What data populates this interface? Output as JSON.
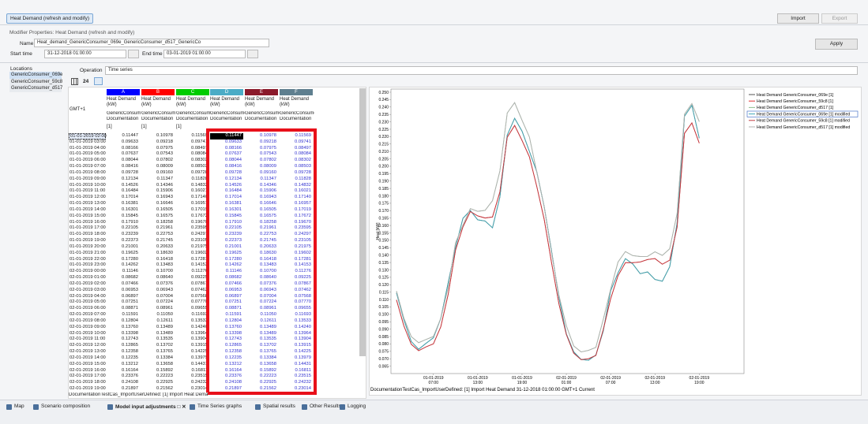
{
  "toolbar": {
    "tab": "Heat Demand (refresh and modify)",
    "import": "Import",
    "export": "Export"
  },
  "modifier": {
    "title": "Modifier Properties: Heat Demand (refresh and modify)",
    "name_label": "Name",
    "name": "Heat_demand_GenericConsumer_069e_GenericConsumer_d517_GenericCo",
    "start_label": "Start time",
    "start": "31-12-2018 01:00:00",
    "end_label": "End time",
    "end": "03-01-2019 01:00:00",
    "apply": "Apply"
  },
  "locations": {
    "title": "Locations",
    "items": [
      "GenericConsumer_069e",
      "GenericConsumer_59c8",
      "GenericConsumer_d517"
    ]
  },
  "operation": {
    "label": "Operation",
    "value": "Time series"
  },
  "view": {
    "count": "24"
  },
  "table": {
    "gmt": "GMT+1",
    "columns": [
      {
        "letter": "A",
        "color": "#0000ff",
        "name": [
          "Heat Demand",
          "(kW)"
        ],
        "doc": [
          "GenericConsum",
          "Documentation"
        ],
        "unit": "[1]"
      },
      {
        "letter": "B",
        "color": "#ff0000",
        "name": [
          "Heat Demand",
          "(kW)"
        ],
        "doc": [
          "GenericConsum",
          "Documentation"
        ],
        "unit": "[1]"
      },
      {
        "letter": "C",
        "color": "#00cc00",
        "name": [
          "Heat Demand",
          "(kW)"
        ],
        "doc": [
          "GenericConsum",
          "Documentation"
        ],
        "unit": "[1]"
      },
      {
        "letter": "D",
        "color": "#4bacc6",
        "name": [
          "Heat Demand",
          "(kW)"
        ],
        "doc": [
          "GenericConsumer",
          "Documentation"
        ]
      },
      {
        "letter": "E",
        "color": "#8b1a2b",
        "name": [
          "Heat Demand",
          "(kW)"
        ],
        "doc": [
          "GenericConsumer",
          "Documentation"
        ]
      },
      {
        "letter": "F",
        "color": "#5f7f8f",
        "name": [
          "Heat Demand",
          "(kW)"
        ],
        "doc": [
          "GenericConsumer",
          "Documentation"
        ]
      }
    ],
    "rows": [
      [
        "01-01-2019 02:00",
        "0.11447",
        "0.10978",
        "0.11569"
      ],
      [
        "01-01-2019 03:00",
        "0.09633",
        "0.09218",
        "0.09741"
      ],
      [
        "01-01-2019 04:00",
        "0.08166",
        "0.07975",
        "0.08497"
      ],
      [
        "01-01-2019 05:00",
        "0.07637",
        "0.07543",
        "0.08084"
      ],
      [
        "01-01-2019 06:00",
        "0.08044",
        "0.07802",
        "0.08302"
      ],
      [
        "01-01-2019 07:00",
        "0.08416",
        "0.08009",
        "0.08503"
      ],
      [
        "01-01-2019 08:00",
        "0.09728",
        "0.09160",
        "0.09728"
      ],
      [
        "01-01-2019 09:00",
        "0.12134",
        "0.11347",
        "0.11828"
      ],
      [
        "01-01-2019 10:00",
        "0.14526",
        "0.14346",
        "0.14832"
      ],
      [
        "01-01-2019 11:00",
        "0.16484",
        "0.15906",
        "0.16021"
      ],
      [
        "01-01-2019 12:00",
        "0.17014",
        "0.16943",
        "0.17140"
      ],
      [
        "01-01-2019 13:00",
        "0.16381",
        "0.16646",
        "0.16957"
      ],
      [
        "01-01-2019 14:00",
        "0.16301",
        "0.16505",
        "0.17019"
      ],
      [
        "01-01-2019 15:00",
        "0.15845",
        "0.16575",
        "0.17672"
      ],
      [
        "01-01-2019 16:00",
        "0.17910",
        "0.18258",
        "0.19670"
      ],
      [
        "01-01-2019 17:00",
        "0.22105",
        "0.21961",
        "0.23595"
      ],
      [
        "01-01-2019 18:00",
        "0.23239",
        "0.22753",
        "0.24297"
      ],
      [
        "01-01-2019 19:00",
        "0.22373",
        "0.21745",
        "0.23105"
      ],
      [
        "01-01-2019 20:00",
        "0.21001",
        "0.20633",
        "0.21975"
      ],
      [
        "01-01-2019 21:00",
        "0.19625",
        "0.18630",
        "0.19602"
      ],
      [
        "01-01-2019 22:00",
        "0.17280",
        "0.16418",
        "0.17281"
      ],
      [
        "01-01-2019 23:00",
        "0.14262",
        "0.13483",
        "0.14153"
      ],
      [
        "02-01-2019 00:00",
        "0.11146",
        "0.10700",
        "0.11276"
      ],
      [
        "02-01-2019 01:00",
        "0.08682",
        "0.08640",
        "0.09225"
      ],
      [
        "02-01-2019 02:00",
        "0.07466",
        "0.07376",
        "0.07867"
      ],
      [
        "02-01-2019 03:00",
        "0.06953",
        "0.06943",
        "0.07462"
      ],
      [
        "02-01-2019 04:00",
        "0.06897",
        "0.07004",
        "0.07568"
      ],
      [
        "02-01-2019 05:00",
        "0.07251",
        "0.07224",
        "0.07770"
      ],
      [
        "02-01-2019 06:00",
        "0.08871",
        "0.08961",
        "0.09655"
      ],
      [
        "02-01-2019 07:00",
        "0.11591",
        "0.11050",
        "0.11693"
      ],
      [
        "02-01-2019 08:00",
        "0.12804",
        "0.12611",
        "0.13533"
      ],
      [
        "02-01-2019 09:00",
        "0.13760",
        "0.13489",
        "0.14240"
      ],
      [
        "02-01-2019 10:00",
        "0.13398",
        "0.13489",
        "0.13964"
      ],
      [
        "02-01-2019 11:00",
        "0.12743",
        "0.13535",
        "0.13904"
      ],
      [
        "02-01-2019 12:00",
        "0.12865",
        "0.13702",
        "0.13915"
      ],
      [
        "02-01-2019 13:00",
        "0.12358",
        "0.13765",
        "0.14225"
      ],
      [
        "02-01-2019 14:00",
        "0.12235",
        "0.13384",
        "0.13979"
      ],
      [
        "02-01-2019 15:00",
        "0.13212",
        "0.13658",
        "0.14431"
      ],
      [
        "02-01-2019 16:00",
        "0.16164",
        "0.15892",
        "0.16811"
      ],
      [
        "02-01-2019 17:00",
        "0.23376",
        "0.22223",
        "0.23515"
      ],
      [
        "02-01-2019 18:00",
        "0.24108",
        "0.22925",
        "0.24232"
      ],
      [
        "02-01-2019 19:00",
        "0.21897",
        "0.21562",
        "0.23014"
      ]
    ]
  },
  "chart": {
    "type": "line",
    "y_label": "Heat [kW]",
    "series": [
      {
        "name": "Heat Demand GenericConsumer_069e [1]",
        "color": "#555555"
      },
      {
        "name": "Heat Demand GenericConsumer_59c8 [1]",
        "color": "#e03030"
      },
      {
        "name": "Heat Demand GenericConsumer_d517 [1]",
        "color": "#90c090"
      },
      {
        "name": "Heat Demand GenericConsumer_069e [1] modified",
        "color": "#3fa8b5"
      },
      {
        "name": "Heat Demand GenericConsumer_59c8 [1] modified",
        "color": "#c03a40"
      },
      {
        "name": "Heat Demand GenericConsumer_d517 [1] modified",
        "color": "#b0b0b0"
      }
    ],
    "ylim": [
      0.06,
      0.25
    ],
    "yticks": [
      0.065,
      {
        "value": 0.07,
        "label": "0.070"
      },
      0.075,
      {
        "value": 0.08,
        "label": "0.080"
      },
      0.085,
      {
        "value": 0.09,
        "label": "0.090"
      },
      0.095,
      {
        "value": 0.1,
        "label": "0.100"
      },
      0.105,
      {
        "value": 0.11,
        "label": "0.110"
      },
      0.115,
      {
        "value": 0.12,
        "label": "0.120"
      },
      0.125,
      {
        "value": 0.13,
        "label": "0.130"
      },
      0.135,
      {
        "value": 0.14,
        "label": "0.140"
      },
      0.145,
      {
        "value": 0.15,
        "label": "0.150"
      },
      0.155,
      {
        "value": 0.16,
        "label": "0.160"
      },
      0.165,
      {
        "value": 0.17,
        "label": "0.170"
      },
      0.175,
      {
        "value": 0.18,
        "label": "0.180"
      },
      0.185,
      {
        "value": 0.19,
        "label": "0.190"
      },
      0.195,
      {
        "value": 0.2,
        "label": "0.200"
      },
      0.205,
      {
        "value": 0.21,
        "label": "0.210"
      },
      0.215,
      {
        "value": 0.22,
        "label": "0.220"
      },
      0.225,
      {
        "value": 0.23,
        "label": "0.230"
      },
      0.235,
      {
        "value": 0.24,
        "label": "0.240"
      },
      0.245,
      {
        "value": 0.25,
        "label": "0.250"
      }
    ],
    "xticks": [
      [
        "01-01-2019",
        "07:00"
      ],
      [
        "01-01-2019",
        "13:00"
      ],
      [
        "01-01-2019",
        "19:00"
      ],
      [
        "02-01-2019",
        "01:00"
      ],
      [
        "02-01-2019",
        "07:00"
      ],
      [
        "02-01-2019",
        "13:00"
      ],
      [
        "02-01-2019",
        "19:00"
      ]
    ]
  },
  "status": "DocumentationTestCas_ImportUserDefined: [1] Import Heat Demand 31-12-2018 01:00:00 GMT+1 Current",
  "tabs": [
    "Map",
    "Scenario composition",
    "Model input adjustments □ ✕",
    "Time Series graphs",
    "Spatial results",
    "Other Results",
    "Logging"
  ]
}
